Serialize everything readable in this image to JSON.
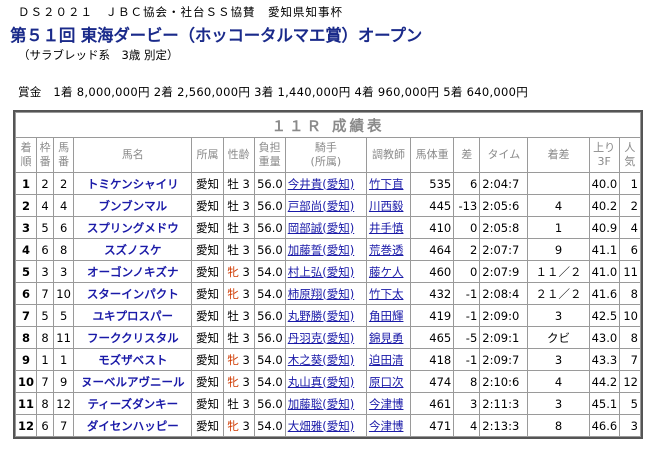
{
  "header": {
    "line1": "ＤＳ２０２１　ＪＢＣ協会・社台ＳＳ協賛　愛知県知事杯",
    "title": "第５１回 東海ダービー（ホッコータルマエ賞）オープン",
    "conditions": "（サラブレッド系　3歳 別定）"
  },
  "prize": "賞金　1着 8,000,000円 2着 2,560,000円 3着 1,440,000円 4着 960,000円 5着 640,000円",
  "table": {
    "caption": "１１Ｒ 成績表",
    "columns": [
      "着\n順",
      "枠\n番",
      "馬\n番",
      "馬名",
      "所属",
      "性齢",
      "負担\n重量",
      "騎手\n(所属)",
      "調教師",
      "馬体重",
      "差",
      "タイム",
      "着差",
      "上り\n3F",
      "人\n気"
    ],
    "rows": [
      {
        "rank": "1",
        "waku": "2",
        "uma": "2",
        "name": "トミケンシャイリ",
        "aff": "愛知",
        "sex": "牡",
        "age": "3",
        "weight": "56.0",
        "jockey": "今井貴(愛知)",
        "trainer": "竹下直",
        "bw": "535",
        "diff": "6",
        "time": "2:04:7",
        "margin": "",
        "last3f": "40.0",
        "pop": "1"
      },
      {
        "rank": "2",
        "waku": "4",
        "uma": "4",
        "name": "ブンブンマル",
        "aff": "愛知",
        "sex": "牡",
        "age": "3",
        "weight": "56.0",
        "jockey": "戸部尚(愛知)",
        "trainer": "川西毅",
        "bw": "445",
        "diff": "-13",
        "time": "2:05:6",
        "margin": "4",
        "last3f": "40.2",
        "pop": "2"
      },
      {
        "rank": "3",
        "waku": "5",
        "uma": "6",
        "name": "スプリングメドウ",
        "aff": "愛知",
        "sex": "牡",
        "age": "3",
        "weight": "56.0",
        "jockey": "岡部誠(愛知)",
        "trainer": "井手慎",
        "bw": "410",
        "diff": "0",
        "time": "2:05:8",
        "margin": "1",
        "last3f": "40.9",
        "pop": "4"
      },
      {
        "rank": "4",
        "waku": "6",
        "uma": "8",
        "name": "スズノスケ",
        "aff": "愛知",
        "sex": "牡",
        "age": "3",
        "weight": "56.0",
        "jockey": "加藤誓(愛知)",
        "trainer": "荒巻透",
        "bw": "464",
        "diff": "2",
        "time": "2:07:7",
        "margin": "9",
        "last3f": "41.1",
        "pop": "6"
      },
      {
        "rank": "5",
        "waku": "3",
        "uma": "3",
        "name": "オーゴンノキズナ",
        "aff": "愛知",
        "sex": "牝",
        "age": "3",
        "weight": "54.0",
        "jockey": "村上弘(愛知)",
        "trainer": "藤ケ人",
        "bw": "460",
        "diff": "0",
        "time": "2:07:9",
        "margin": "１１／２",
        "last3f": "41.0",
        "pop": "11"
      },
      {
        "rank": "6",
        "waku": "7",
        "uma": "10",
        "name": "スターインパクト",
        "aff": "愛知",
        "sex": "牝",
        "age": "3",
        "weight": "54.0",
        "jockey": "柿原翔(愛知)",
        "trainer": "竹下太",
        "bw": "432",
        "diff": "-1",
        "time": "2:08:4",
        "margin": "２１／２",
        "last3f": "41.6",
        "pop": "8"
      },
      {
        "rank": "7",
        "waku": "5",
        "uma": "5",
        "name": "ユキプロスパー",
        "aff": "愛知",
        "sex": "牡",
        "age": "3",
        "weight": "56.0",
        "jockey": "丸野勝(愛知)",
        "trainer": "角田輝",
        "bw": "419",
        "diff": "-1",
        "time": "2:09:0",
        "margin": "3",
        "last3f": "42.5",
        "pop": "10"
      },
      {
        "rank": "8",
        "waku": "8",
        "uma": "11",
        "name": "フーククリスタル",
        "aff": "愛知",
        "sex": "牡",
        "age": "3",
        "weight": "56.0",
        "jockey": "丹羽克(愛知)",
        "trainer": "錦見勇",
        "bw": "465",
        "diff": "-5",
        "time": "2:09:1",
        "margin": "クビ",
        "last3f": "43.0",
        "pop": "8"
      },
      {
        "rank": "9",
        "waku": "1",
        "uma": "1",
        "name": "モズザベスト",
        "aff": "愛知",
        "sex": "牝",
        "age": "3",
        "weight": "54.0",
        "jockey": "木之葵(愛知)",
        "trainer": "迫田清",
        "bw": "418",
        "diff": "-1",
        "time": "2:09:7",
        "margin": "3",
        "last3f": "43.3",
        "pop": "7"
      },
      {
        "rank": "10",
        "waku": "7",
        "uma": "9",
        "name": "ヌーベルアヴニール",
        "aff": "愛知",
        "sex": "牝",
        "age": "3",
        "weight": "54.0",
        "jockey": "丸山真(愛知)",
        "trainer": "原口次",
        "bw": "474",
        "diff": "8",
        "time": "2:10:6",
        "margin": "4",
        "last3f": "44.2",
        "pop": "12"
      },
      {
        "rank": "11",
        "waku": "8",
        "uma": "12",
        "name": "ティーズダンキー",
        "aff": "愛知",
        "sex": "牡",
        "age": "3",
        "weight": "56.0",
        "jockey": "加藤聡(愛知)",
        "trainer": "今津博",
        "bw": "461",
        "diff": "3",
        "time": "2:11:3",
        "margin": "3",
        "last3f": "45.1",
        "pop": "5"
      },
      {
        "rank": "12",
        "waku": "6",
        "uma": "7",
        "name": "ダイセンハッピー",
        "aff": "愛知",
        "sex": "牝",
        "age": "3",
        "weight": "54.0",
        "jockey": "大畑雅(愛知)",
        "trainer": "今津博",
        "bw": "471",
        "diff": "4",
        "time": "2:13:3",
        "margin": "8",
        "last3f": "46.6",
        "pop": "3"
      }
    ]
  }
}
